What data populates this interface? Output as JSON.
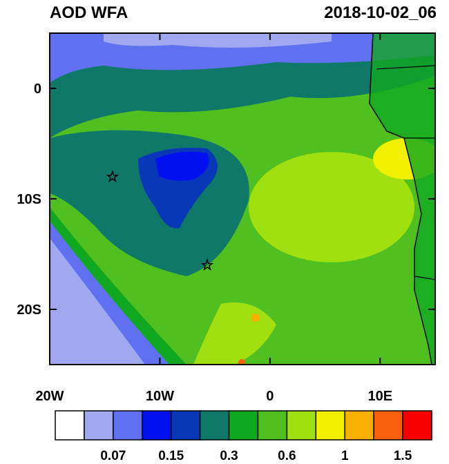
{
  "chart_data": {
    "type": "map",
    "title": "AOD WFA",
    "subtitle": "2018-10-02_06",
    "xlim": [
      -20,
      15
    ],
    "ylim": [
      -25,
      5
    ],
    "xticks": [
      {
        "value": -20,
        "label": "20W"
      },
      {
        "value": -10,
        "label": "10W"
      },
      0,
      {
        "value": 10,
        "label": "10E"
      }
    ],
    "yticks": [
      0,
      {
        "value": -10,
        "label": "10S"
      },
      {
        "value": -20,
        "label": "20S"
      }
    ],
    "markers": [
      {
        "lon": -14.3,
        "lat": -8.0
      },
      {
        "lon": -5.7,
        "lat": -16.0
      }
    ],
    "colorbar": {
      "colors": [
        "#ffffff",
        "#a0a8f0",
        "#6070f0",
        "#0010f0",
        "#0838b8",
        "#107868",
        "#10a820",
        "#50c020",
        "#a0e010",
        "#f0f000",
        "#f8b000",
        "#f86010",
        "#f80000"
      ],
      "labels": [
        "0.07",
        "0.15",
        "0.3",
        "0.6",
        "1",
        "1.5"
      ]
    }
  }
}
